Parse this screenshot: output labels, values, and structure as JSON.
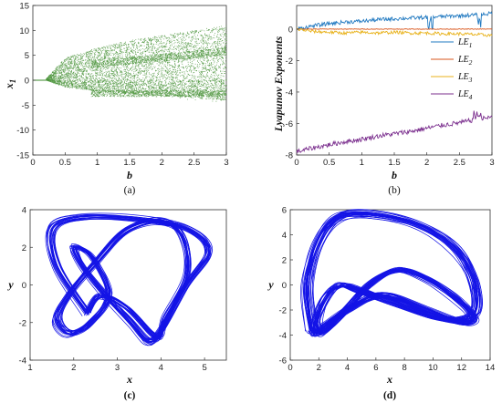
{
  "colors": {
    "scatter": "#3a8a28",
    "le1": "#1f78c0",
    "le2": "#d9551b",
    "le3": "#e8b21b",
    "le4": "#7b2f8e",
    "attractor": "#1414e6"
  },
  "chart_data": [
    {
      "id": "a",
      "type": "scatter",
      "panel_label": "(a)",
      "xlabel": "b",
      "ylabel": "x",
      "ylabel_sub": "1",
      "xlim": [
        0,
        3
      ],
      "ylim": [
        -15,
        15
      ],
      "xticks": [
        0,
        0.5,
        1,
        1.5,
        2,
        2.5,
        3
      ],
      "xtick_labels": [
        "0",
        "0.5",
        "1",
        "1.5",
        "2",
        "2.5",
        "3"
      ],
      "yticks": [
        -15,
        -10,
        -5,
        0,
        5,
        10,
        15
      ],
      "ytick_labels": [
        "-15",
        "-10",
        "-5",
        "0",
        "5",
        "10",
        "15"
      ],
      "description_points": [
        {
          "b": 0.2,
          "x1_range": [
            0,
            0.3
          ]
        },
        {
          "b": 0.5,
          "x1_range": [
            -1.5,
            4.5
          ]
        },
        {
          "b": 1.0,
          "x1_range": [
            -2.5,
            6.5
          ]
        },
        {
          "b": 1.5,
          "x1_range": [
            -3.0,
            8.0
          ]
        },
        {
          "b": 2.0,
          "x1_range": [
            -3.5,
            9.0
          ]
        },
        {
          "b": 2.5,
          "x1_range": [
            -4.0,
            10.0
          ]
        },
        {
          "b": 3.0,
          "x1_range": [
            -4.5,
            11.0
          ]
        }
      ]
    },
    {
      "id": "b",
      "type": "line",
      "panel_label": "(b)",
      "xlabel": "b",
      "ylabel": "Lyapunov Exponents",
      "xlim": [
        0,
        3
      ],
      "ylim": [
        -8,
        1.5
      ],
      "xticks": [
        0,
        0.5,
        1,
        1.5,
        2,
        2.5,
        3
      ],
      "xtick_labels": [
        "0",
        "0.5",
        "1",
        "1.5",
        "2",
        "2.5",
        "3"
      ],
      "yticks": [
        -8,
        -6,
        -4,
        -2,
        0
      ],
      "ytick_labels": [
        "-8",
        "-6",
        "-4",
        "-2",
        "0"
      ],
      "legend_position": "right",
      "x": [
        0,
        0.25,
        0.5,
        0.75,
        1.0,
        1.25,
        1.5,
        1.75,
        2.0,
        2.25,
        2.5,
        2.75,
        3.0
      ],
      "series": [
        {
          "name": "LE",
          "sub": "1",
          "color_key": "le1",
          "values": [
            0.0,
            0.2,
            0.35,
            0.45,
            0.5,
            0.6,
            0.65,
            0.7,
            0.75,
            0.8,
            0.85,
            0.9,
            1.0
          ]
        },
        {
          "name": "LE",
          "sub": "2",
          "color_key": "le2",
          "values": [
            0,
            0,
            0,
            0,
            0,
            0,
            0,
            0,
            0,
            0,
            0,
            0,
            0
          ]
        },
        {
          "name": "LE",
          "sub": "3",
          "color_key": "le3",
          "values": [
            0.0,
            -0.15,
            -0.2,
            -0.25,
            -0.2,
            -0.25,
            -0.2,
            -0.25,
            -0.25,
            -0.3,
            -0.3,
            -0.35,
            -0.4
          ]
        },
        {
          "name": "LE",
          "sub": "4",
          "color_key": "le4",
          "values": [
            -7.8,
            -7.55,
            -7.35,
            -7.15,
            -7.0,
            -6.8,
            -6.65,
            -6.5,
            -6.3,
            -6.1,
            -5.95,
            -5.75,
            -5.6
          ]
        }
      ]
    },
    {
      "id": "c",
      "type": "line",
      "panel_label": "(c)",
      "xlabel": "x",
      "ylabel": "y",
      "xlim": [
        1,
        5.5
      ],
      "ylim": [
        -4,
        4
      ],
      "xticks": [
        1,
        2,
        3,
        4,
        5
      ],
      "xtick_labels": [
        "1",
        "2",
        "3",
        "4",
        "5"
      ],
      "yticks": [
        -4,
        -2,
        0,
        2,
        4
      ],
      "ytick_labels": [
        "-4",
        "-2",
        "0",
        "2",
        "4"
      ],
      "series": [
        {
          "color_key": "attractor",
          "x": [
            2.3,
            1.6,
            1.5,
            2.2,
            3.5,
            4.6,
            5.1,
            4.6,
            4.0,
            3.7,
            3.3,
            2.7,
            2.2,
            2.0,
            2.4,
            2.8,
            2.4,
            1.9,
            1.6,
            1.9,
            2.5,
            3.2,
            4.0,
            4.5,
            4.6,
            4.1,
            3.9,
            3.2,
            2.6,
            2.3
          ],
          "y": [
            -1.5,
            1.0,
            3.0,
            3.6,
            3.5,
            3.0,
            1.8,
            0.0,
            -2.5,
            -3.0,
            -2.0,
            -0.5,
            1.0,
            2.0,
            1.5,
            -0.5,
            -2.0,
            -2.6,
            -1.8,
            -0.5,
            1.2,
            2.9,
            3.4,
            2.6,
            0.5,
            -1.8,
            -2.8,
            -1.2,
            -0.6,
            -1.5
          ]
        }
      ]
    },
    {
      "id": "d",
      "type": "line",
      "panel_label": "(d)",
      "xlabel": "x",
      "ylabel": "y",
      "xlim": [
        0,
        14
      ],
      "ylim": [
        -6,
        6
      ],
      "xticks": [
        0,
        2,
        4,
        6,
        8,
        10,
        12,
        14
      ],
      "xtick_labels": [
        "0",
        "2",
        "4",
        "6",
        "8",
        "10",
        "12",
        "14"
      ],
      "yticks": [
        -6,
        -4,
        -2,
        0,
        2,
        4,
        6
      ],
      "ytick_labels": [
        "-6",
        "-4",
        "-2",
        "0",
        "2",
        "4",
        "6"
      ],
      "series": [
        {
          "color_key": "attractor",
          "x": [
            1.5,
            1.2,
            2.0,
            3.5,
            6.0,
            9.0,
            11.5,
            12.8,
            13.0,
            12.0,
            10.0,
            7.5,
            5.0,
            3.5,
            2.5,
            1.8,
            2.2,
            3.5,
            5.5,
            7.5,
            9.5,
            11.5,
            12.8,
            12.0,
            9.5,
            6.5,
            4.0,
            2.5,
            1.8,
            1.5
          ],
          "y": [
            -3.5,
            0.0,
            3.5,
            5.5,
            5.6,
            4.8,
            3.0,
            0.5,
            -2.0,
            -2.8,
            -2.5,
            -1.5,
            -0.5,
            0.0,
            -1.0,
            -3.0,
            -3.8,
            -2.5,
            0.0,
            1.2,
            0.5,
            -1.0,
            -2.5,
            -3.0,
            -2.0,
            -0.8,
            -2.0,
            -3.2,
            -3.8,
            -3.5
          ]
        }
      ]
    }
  ]
}
